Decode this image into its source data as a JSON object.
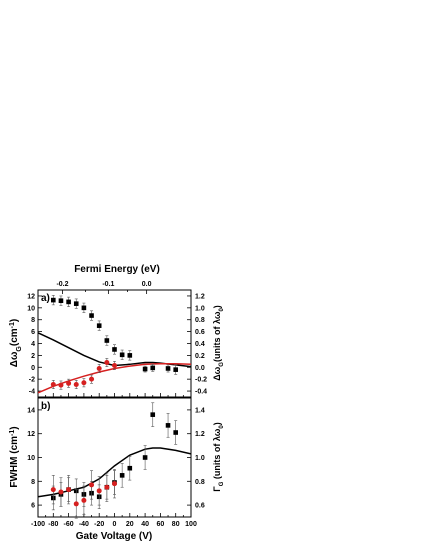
{
  "chart_data": [
    {
      "panel": "a)",
      "type": "scatter",
      "top_axis": {
        "label": "Fermi Energy (eV)",
        "ticks": [
          {
            "label": "-0.2",
            "voltage": -68
          },
          {
            "label": "-0.1",
            "voltage": -8
          },
          {
            "label": "0.0",
            "voltage": 42
          }
        ]
      },
      "xlim": [
        -100,
        100
      ],
      "ylim": [
        -5,
        13
      ],
      "y_ticks": [
        "-4",
        "-2",
        "0",
        "2",
        "4",
        "6",
        "8",
        "10",
        "12"
      ],
      "ylabel": "Δω_G(cm^-1)",
      "ylabel_main": "Δω",
      "ylabel_sub": "G",
      "ylabel_unit": "(cm",
      "ylabel_sup": "-1",
      "ylabel_close": ")",
      "right_axis": {
        "ylim": [
          -0.5,
          1.3
        ],
        "ticks": [
          "-0.4",
          "-0.2",
          "0.0",
          "0.2",
          "0.4",
          "0.6",
          "0.8",
          "1.0",
          "1.2"
        ],
        "label": "Δω_G(units of λω0)",
        "label_main": "Δω",
        "label_sub": "G",
        "label_rest": "(units of λω",
        "label_rest_sub": "0",
        "label_close": ")"
      },
      "series": [
        {
          "color": "#000000",
          "marker": "square",
          "x": [
            -80,
            -70,
            -60,
            -50,
            -40,
            -30,
            -20,
            -10,
            0,
            10,
            20,
            40,
            50,
            70,
            80
          ],
          "y": [
            11.3,
            11.2,
            11.0,
            10.7,
            10.0,
            8.7,
            7.0,
            4.5,
            3.0,
            2.1,
            2.0,
            -0.3,
            -0.1,
            -0.2,
            -0.4
          ],
          "err": [
            0.8,
            0.8,
            0.8,
            0.8,
            0.8,
            0.8,
            0.8,
            0.8,
            0.8,
            0.8,
            0.8,
            0.5,
            0.6,
            0.6,
            0.8
          ]
        },
        {
          "color": "#d62020",
          "marker": "circle",
          "x": [
            -80,
            -70,
            -60,
            -50,
            -40,
            -30,
            -20,
            -10,
            0
          ],
          "y": [
            -2.9,
            -3.0,
            -2.7,
            -2.9,
            -2.6,
            -2.0,
            -0.2,
            0.8,
            0.3
          ],
          "err": [
            0.7,
            0.7,
            0.7,
            0.7,
            0.7,
            0.7,
            0.7,
            0.7,
            0.7
          ]
        }
      ],
      "curves": [
        {
          "color": "#000000",
          "x": [
            -100,
            -80,
            -60,
            -40,
            -20,
            0,
            20,
            40,
            50,
            60,
            80,
            100
          ],
          "y": [
            5.8,
            4.6,
            3.3,
            2.0,
            0.9,
            0.3,
            0.5,
            0.8,
            0.8,
            0.7,
            0.4,
            0.1
          ]
        },
        {
          "color": "#d62020",
          "x": [
            -100,
            -80,
            -60,
            -40,
            -20,
            0,
            20,
            40,
            60,
            80,
            100
          ],
          "y": [
            -4.3,
            -3.2,
            -2.3,
            -1.5,
            -0.8,
            -0.2,
            0.2,
            0.5,
            0.6,
            0.6,
            0.5
          ]
        }
      ]
    },
    {
      "panel": "b)",
      "type": "scatter",
      "xlim": [
        -100,
        100
      ],
      "ylim": [
        5,
        15
      ],
      "x_ticks": [
        "-100",
        "-80",
        "-60",
        "-40",
        "-20",
        "0",
        "20",
        "40",
        "60",
        "80",
        "100"
      ],
      "y_ticks": [
        "6",
        "8",
        "10",
        "12",
        "14"
      ],
      "xlabel": "Gate Voltage (V)",
      "ylabel": "FWHM (cm^-1)",
      "ylabel_main": "FWHM (cm",
      "ylabel_sup": "-1",
      "ylabel_close": ")",
      "right_axis": {
        "ylim": [
          0.5,
          1.5
        ],
        "ticks": [
          "0.6",
          "0.8",
          "1.0",
          "1.2",
          "1.4"
        ],
        "label": "Γ_G (units of λω0)",
        "label_main": "Γ",
        "label_sub": "G",
        "label_rest": " (units of λω",
        "label_rest_sub": "0",
        "label_close": ")"
      },
      "series": [
        {
          "color": "#000000",
          "marker": "square",
          "x": [
            -80,
            -70,
            -60,
            -50,
            -40,
            -30,
            -20,
            -10,
            0,
            10,
            20,
            40,
            50,
            70,
            80
          ],
          "y": [
            6.6,
            6.9,
            7.3,
            7.2,
            6.9,
            7.0,
            6.7,
            7.5,
            7.9,
            8.5,
            9.1,
            10.0,
            13.6,
            12.7,
            12.1
          ],
          "err": [
            1.0,
            1.0,
            1.0,
            1.0,
            1.0,
            1.0,
            1.0,
            1.0,
            1.0,
            1.0,
            1.0,
            1.0,
            1.0,
            1.0,
            1.0
          ]
        },
        {
          "color": "#d62020",
          "marker": "circle",
          "x": [
            -80,
            -70,
            -60,
            -50,
            -40,
            -30,
            -20,
            -10,
            0
          ],
          "y": [
            7.3,
            7.1,
            7.3,
            6.1,
            6.4,
            7.7,
            7.2,
            7.5,
            7.8
          ],
          "err": [
            1.2,
            1.2,
            1.2,
            1.2,
            1.2,
            1.2,
            1.2,
            1.2,
            1.2
          ]
        }
      ],
      "curves": [
        {
          "color": "#000000",
          "x": [
            -100,
            -80,
            -60,
            -40,
            -20,
            0,
            20,
            40,
            50,
            60,
            80,
            100
          ],
          "y": [
            6.7,
            6.9,
            7.2,
            7.5,
            8.2,
            9.3,
            10.2,
            10.7,
            10.8,
            10.8,
            10.6,
            10.3
          ]
        }
      ]
    }
  ]
}
